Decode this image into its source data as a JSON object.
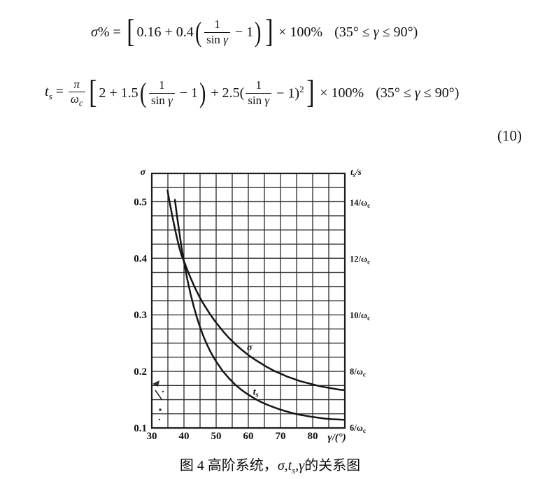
{
  "equations": {
    "eq1": {
      "sigma": "σ",
      "pct_eq": "% = ",
      "open_bracket": "[",
      "pre": "0.16 + 0.4",
      "open_paren": "(",
      "frac_num": "1",
      "frac_den_fn": "sin ",
      "frac_den_var": "γ",
      "tail": " − 1",
      "close_paren": ")",
      "close_bracket": "]",
      "times": " × 100%",
      "range_a": "(35° ≤ ",
      "range_b": "γ",
      "range_c": " ≤ 90°)"
    },
    "eq2": {
      "t": "t",
      "t_sub": "s",
      "eq": " = ",
      "pi": "π",
      "omega": "ω",
      "omega_sub": "c",
      "open_bracket": "[",
      "pre": "2 + 1.5",
      "open_paren": "(",
      "frac1_num": "1",
      "frac1_den_fn": "sin ",
      "frac1_den_var": "γ",
      "tail1": " − 1",
      "close_paren": ")",
      "mid": " + 2.5(",
      "frac2_num": "1",
      "frac2_den_fn": "sin ",
      "frac2_den_var": "γ",
      "tail2": " − 1)",
      "sup": "2",
      "close_bracket": "]",
      "times": " × 100%",
      "range_a": "(35° ≤ ",
      "range_b": "γ",
      "range_c": " ≤ 90°)"
    },
    "number": "(10)"
  },
  "figure": {
    "caption": {
      "fig_label": "图 4",
      "text_before": " 高阶系统，",
      "math_a": "σ,t",
      "math_sub": "s",
      "math_b": ",γ",
      "text_after": "的关系图"
    }
  },
  "chart_data": {
    "type": "line",
    "title": "",
    "x_axis": {
      "label": "γ/(°)",
      "min": 30,
      "max": 90,
      "major_ticks": [
        30,
        40,
        50,
        60,
        70,
        80
      ],
      "minor_step": 5
    },
    "y_left": {
      "label": "σ",
      "min": 0.1,
      "max": 0.55,
      "major_ticks": [
        0.5,
        0.4,
        0.3,
        0.2,
        0.1
      ],
      "minor_step": 0.025
    },
    "y_right": {
      "label_main": "t",
      "label_sub": "s",
      "label_after": "/s",
      "min": 6,
      "max": 15.04,
      "ticks": [
        {
          "value": 14,
          "main": "14/ω",
          "sub": "c"
        },
        {
          "value": 12,
          "main": "12/ω",
          "sub": "c"
        },
        {
          "value": 10,
          "main": "10/ω",
          "sub": "c"
        },
        {
          "value": 8,
          "main": "8/ω",
          "sub": "c"
        },
        {
          "value": 6,
          "main": "6/ω",
          "sub": "c"
        }
      ]
    },
    "grid": true,
    "legend_position": "inline-curve-labels",
    "series": [
      {
        "name": "sigma",
        "label_main": "σ",
        "label_sub": "",
        "axis": "left",
        "label_pos": [
          60.4,
          0.2375
        ],
        "points": [
          [
            34.9,
            0.52
          ],
          [
            35.6,
            0.497
          ],
          [
            36.5,
            0.471
          ],
          [
            37.5,
            0.444
          ],
          [
            38.5,
            0.42
          ],
          [
            39.2,
            0.406
          ],
          [
            40,
            0.395
          ],
          [
            41,
            0.38
          ],
          [
            42,
            0.366
          ],
          [
            43,
            0.353
          ],
          [
            44,
            0.341
          ],
          [
            45,
            0.33
          ],
          [
            46,
            0.32
          ],
          [
            47,
            0.311
          ],
          [
            48,
            0.302
          ],
          [
            49,
            0.294
          ],
          [
            50,
            0.286
          ],
          [
            52,
            0.272
          ],
          [
            54,
            0.259
          ],
          [
            56,
            0.248
          ],
          [
            58,
            0.238
          ],
          [
            60,
            0.229
          ],
          [
            62,
            0.221
          ],
          [
            64,
            0.214
          ],
          [
            66,
            0.207
          ],
          [
            68,
            0.201
          ],
          [
            70,
            0.196
          ],
          [
            72,
            0.191
          ],
          [
            74,
            0.187
          ],
          [
            76,
            0.183
          ],
          [
            78,
            0.18
          ],
          [
            80,
            0.177
          ],
          [
            82,
            0.174
          ],
          [
            84,
            0.172
          ],
          [
            86,
            0.17
          ],
          [
            88,
            0.168
          ],
          [
            89.6,
            0.167
          ]
        ]
      },
      {
        "name": "ts",
        "label_main": "t",
        "label_sub": "s",
        "axis": "right",
        "label_pos": [
          62.3,
          7.18
        ],
        "points": [
          [
            37.2,
            14.1
          ],
          [
            37.8,
            13.55
          ],
          [
            38.5,
            13.0
          ],
          [
            39.2,
            12.45
          ],
          [
            40,
            11.9
          ],
          [
            41,
            11.3
          ],
          [
            42,
            10.78
          ],
          [
            43,
            10.33
          ],
          [
            44,
            9.93
          ],
          [
            45,
            9.58
          ],
          [
            46,
            9.27
          ],
          [
            47,
            9.0
          ],
          [
            48,
            8.76
          ],
          [
            49,
            8.55
          ],
          [
            50,
            8.36
          ],
          [
            52,
            8.03
          ],
          [
            54,
            7.76
          ],
          [
            56,
            7.53
          ],
          [
            58,
            7.34
          ],
          [
            60,
            7.18
          ],
          [
            62,
            7.04
          ],
          [
            64,
            6.92
          ],
          [
            66,
            6.82
          ],
          [
            68,
            6.73
          ],
          [
            70,
            6.65
          ],
          [
            72,
            6.58
          ],
          [
            74,
            6.52
          ],
          [
            76,
            6.47
          ],
          [
            78,
            6.43
          ],
          [
            80,
            6.39
          ],
          [
            82,
            6.36
          ],
          [
            84,
            6.33
          ],
          [
            86,
            6.31
          ],
          [
            88,
            6.3
          ],
          [
            89.6,
            6.29
          ]
        ]
      }
    ]
  }
}
